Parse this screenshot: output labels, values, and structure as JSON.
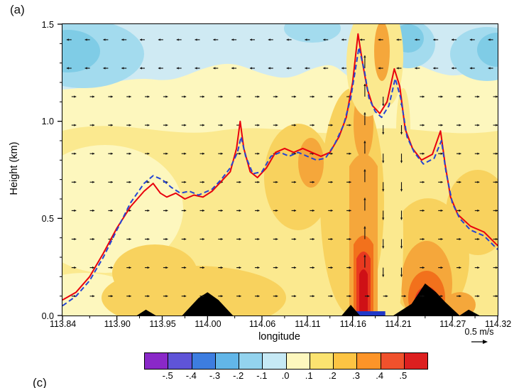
{
  "labels": {
    "panel_a": "(a)",
    "panel_c": "(c)"
  },
  "chart_data": {
    "type": "heatmap",
    "subtype": "vertical-cross-section-contour-with-wind-vectors",
    "title": "",
    "xlabel": "longitude",
    "ylabel": "Height (km)",
    "xlim": [
      113.84,
      114.32
    ],
    "ylim": [
      0.0,
      1.5
    ],
    "grid": false,
    "x_ticks": [
      113.84,
      113.9,
      113.95,
      114.0,
      114.06,
      114.11,
      114.16,
      114.21,
      114.27,
      114.32
    ],
    "x_tick_labels": [
      "113.84",
      "113.90",
      "113.95",
      "114.00",
      "114.06",
      "114.11",
      "114.16",
      "114.21",
      "114.27",
      "114.32"
    ],
    "y_ticks": [
      0.0,
      0.5,
      1.0,
      1.5
    ],
    "y_tick_labels": [
      "0.0",
      "0.5",
      "1.0",
      "1.5"
    ],
    "reference_vector_label": "0.5 m/s",
    "colorbar": {
      "tick_labels": [
        "-.5",
        "-.4",
        "-.3",
        "-.2",
        "-.1",
        ".0",
        ".1",
        ".2",
        ".3",
        ".4",
        ".5"
      ],
      "colors": [
        "#8a28c8",
        "#5f54d8",
        "#3d7de0",
        "#62b6e8",
        "#93d3ee",
        "#c6e9f5",
        "#fdf7be",
        "#fbe370",
        "#fdc443",
        "#fd9428",
        "#f0512c",
        "#dd1f1f"
      ]
    },
    "series": [
      {
        "name": "pbl-height-red-solid",
        "color": "#e8000d",
        "style": "solid",
        "points": [
          [
            113.84,
            0.08
          ],
          [
            113.855,
            0.12
          ],
          [
            113.87,
            0.2
          ],
          [
            113.885,
            0.32
          ],
          [
            113.9,
            0.45
          ],
          [
            113.915,
            0.56
          ],
          [
            113.93,
            0.64
          ],
          [
            113.94,
            0.68
          ],
          [
            113.948,
            0.63
          ],
          [
            113.955,
            0.61
          ],
          [
            113.965,
            0.63
          ],
          [
            113.975,
            0.6
          ],
          [
            113.985,
            0.62
          ],
          [
            113.995,
            0.61
          ],
          [
            114.005,
            0.64
          ],
          [
            114.015,
            0.69
          ],
          [
            114.025,
            0.74
          ],
          [
            114.032,
            0.86
          ],
          [
            114.036,
            1.0
          ],
          [
            114.04,
            0.86
          ],
          [
            114.047,
            0.74
          ],
          [
            114.055,
            0.71
          ],
          [
            114.065,
            0.76
          ],
          [
            114.075,
            0.84
          ],
          [
            114.085,
            0.86
          ],
          [
            114.095,
            0.84
          ],
          [
            114.105,
            0.86
          ],
          [
            114.115,
            0.84
          ],
          [
            114.125,
            0.82
          ],
          [
            114.135,
            0.84
          ],
          [
            114.145,
            0.92
          ],
          [
            114.153,
            1.02
          ],
          [
            114.16,
            1.2
          ],
          [
            114.166,
            1.45
          ],
          [
            114.171,
            1.3
          ],
          [
            114.176,
            1.17
          ],
          [
            114.182,
            1.08
          ],
          [
            114.19,
            1.04
          ],
          [
            114.198,
            1.1
          ],
          [
            114.206,
            1.27
          ],
          [
            114.212,
            1.18
          ],
          [
            114.218,
            0.96
          ],
          [
            114.226,
            0.86
          ],
          [
            114.236,
            0.8
          ],
          [
            114.248,
            0.83
          ],
          [
            114.257,
            0.95
          ],
          [
            114.262,
            0.78
          ],
          [
            114.268,
            0.61
          ],
          [
            114.276,
            0.52
          ],
          [
            114.29,
            0.46
          ],
          [
            114.305,
            0.43
          ],
          [
            114.32,
            0.36
          ]
        ]
      },
      {
        "name": "pbl-height-blue-dashed",
        "color": "#2545d3",
        "style": "dashed",
        "points": [
          [
            113.84,
            0.05
          ],
          [
            113.855,
            0.1
          ],
          [
            113.87,
            0.18
          ],
          [
            113.885,
            0.3
          ],
          [
            113.9,
            0.44
          ],
          [
            113.915,
            0.58
          ],
          [
            113.93,
            0.68
          ],
          [
            113.94,
            0.72
          ],
          [
            113.95,
            0.7
          ],
          [
            113.96,
            0.66
          ],
          [
            113.97,
            0.63
          ],
          [
            113.98,
            0.64
          ],
          [
            113.99,
            0.62
          ],
          [
            114.005,
            0.65
          ],
          [
            114.015,
            0.7
          ],
          [
            114.025,
            0.76
          ],
          [
            114.033,
            0.84
          ],
          [
            114.037,
            0.92
          ],
          [
            114.042,
            0.82
          ],
          [
            114.05,
            0.73
          ],
          [
            114.06,
            0.74
          ],
          [
            114.07,
            0.82
          ],
          [
            114.08,
            0.84
          ],
          [
            114.09,
            0.82
          ],
          [
            114.1,
            0.84
          ],
          [
            114.11,
            0.82
          ],
          [
            114.12,
            0.8
          ],
          [
            114.13,
            0.81
          ],
          [
            114.14,
            0.88
          ],
          [
            114.15,
            0.98
          ],
          [
            114.158,
            1.12
          ],
          [
            114.167,
            1.38
          ],
          [
            114.173,
            1.26
          ],
          [
            114.178,
            1.12
          ],
          [
            114.185,
            1.05
          ],
          [
            114.192,
            1.02
          ],
          [
            114.2,
            1.08
          ],
          [
            114.207,
            1.22
          ],
          [
            114.213,
            1.12
          ],
          [
            114.22,
            0.92
          ],
          [
            114.228,
            0.84
          ],
          [
            114.238,
            0.78
          ],
          [
            114.25,
            0.81
          ],
          [
            114.258,
            0.9
          ],
          [
            114.263,
            0.74
          ],
          [
            114.27,
            0.58
          ],
          [
            114.278,
            0.5
          ],
          [
            114.29,
            0.44
          ],
          [
            114.305,
            0.41
          ],
          [
            114.32,
            0.34
          ]
        ]
      }
    ],
    "terrain": {
      "color": "#000000",
      "polygons": [
        [
          [
            113.922,
            0
          ],
          [
            113.932,
            0.03
          ],
          [
            113.943,
            0
          ]
        ],
        [
          [
            113.972,
            0
          ],
          [
            113.99,
            0.09
          ],
          [
            114.0,
            0.12
          ],
          [
            114.012,
            0.08
          ],
          [
            114.028,
            0
          ]
        ],
        [
          [
            114.148,
            0
          ],
          [
            114.158,
            0.055
          ],
          [
            114.168,
            0
          ]
        ],
        [
          [
            114.205,
            0
          ],
          [
            114.225,
            0.06
          ],
          [
            114.24,
            0.165
          ],
          [
            114.252,
            0.12
          ],
          [
            114.262,
            0.07
          ],
          [
            114.278,
            0
          ]
        ],
        [
          [
            114.278,
            0
          ],
          [
            114.288,
            0.03
          ],
          [
            114.3,
            0
          ]
        ]
      ]
    },
    "surface_bar": {
      "color": "#2038c8",
      "x_start": 114.152,
      "x_end": 114.196
    },
    "wind": {
      "rows": 10,
      "cols": 24,
      "y_min": 0.1,
      "y_max": 1.42,
      "x_min": 113.85,
      "x_max": 114.315,
      "updraft_lon": 114.1735,
      "updraft_halfwidth": 0.011,
      "downdraft_lon": 114.1937,
      "downdraft_halfwidth": 0.021,
      "upper_reverse_height": 1.15
    }
  }
}
